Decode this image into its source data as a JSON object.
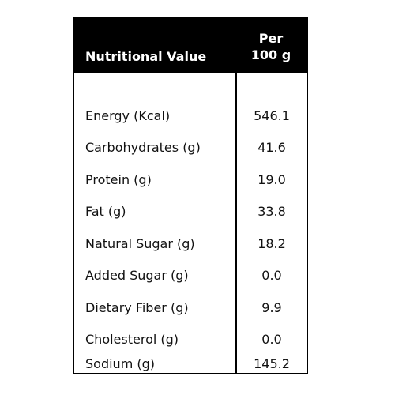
{
  "table": {
    "header": {
      "name_label": "Nutritional Value",
      "per_label_line1": "Per",
      "per_label_line2": "100 g"
    },
    "rows": [
      {
        "name": "Energy (Kcal)",
        "value": "546.1"
      },
      {
        "name": "Carbohydrates (g)",
        "value": "41.6"
      },
      {
        "name": "Protein (g)",
        "value": "19.0"
      },
      {
        "name": "Fat (g)",
        "value": "33.8"
      },
      {
        "name": "Natural Sugar (g)",
        "value": "18.2"
      },
      {
        "name": "Added Sugar (g)",
        "value": "0.0"
      },
      {
        "name": "Dietary Fiber (g)",
        "value": "9.9"
      },
      {
        "name": "Cholesterol (g)",
        "value": "0.0"
      },
      {
        "name": "Sodium (g)",
        "value": "145.2"
      }
    ]
  }
}
